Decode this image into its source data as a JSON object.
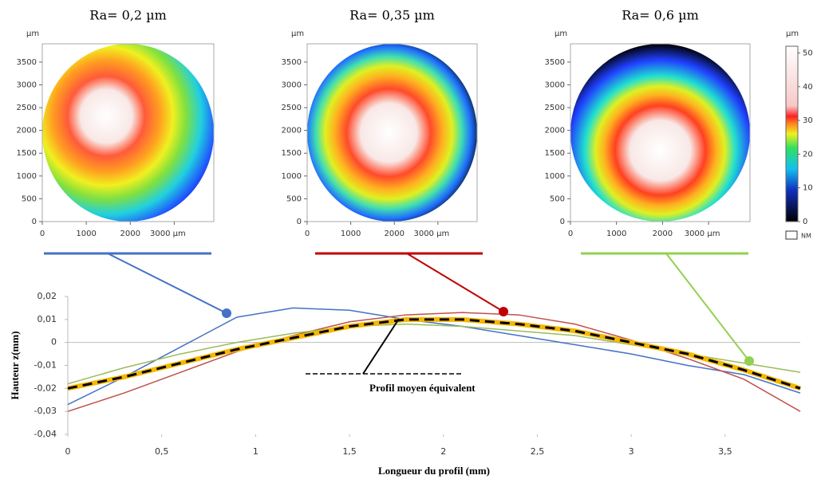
{
  "chart_data": [
    {
      "type": "surface-map",
      "title": "Ra= 0,2 µm",
      "unit": "µm",
      "xlim": [
        0,
        3900
      ],
      "ylim": [
        0,
        3900
      ],
      "xticks": [
        0,
        1000,
        2000,
        {
          "value": 3000,
          "label": "3000 µm"
        }
      ],
      "yticks": [
        0,
        500,
        1000,
        1500,
        2000,
        2500,
        3000,
        3500
      ]
    },
    {
      "type": "surface-map",
      "title": "Ra= 0,35 µm",
      "unit": "µm",
      "xlim": [
        0,
        3900
      ],
      "ylim": [
        0,
        3900
      ],
      "xticks": [
        0,
        1000,
        2000,
        {
          "value": 3000,
          "label": "3000 µm"
        }
      ],
      "yticks": [
        0,
        500,
        1000,
        1500,
        2000,
        2500,
        3000,
        3500
      ]
    },
    {
      "type": "surface-map",
      "title": "Ra= 0,6 µm",
      "unit": "µm",
      "xlim": [
        0,
        3900
      ],
      "ylim": [
        0,
        3900
      ],
      "xticks": [
        0,
        1000,
        2000,
        {
          "value": 3000,
          "label": "3000 µm"
        }
      ],
      "yticks": [
        0,
        500,
        1000,
        1500,
        2000,
        2500,
        3000,
        3500
      ]
    },
    {
      "type": "colorbar",
      "unit": "µm",
      "ylim": [
        0,
        52
      ],
      "yticks": [
        0,
        10,
        20,
        30,
        40,
        50
      ],
      "no_data_label": "NM"
    },
    {
      "type": "line",
      "xlabel": "Longueur du profil (mm)",
      "ylabel": "Hauteur z(mm)",
      "xlim": [
        0,
        3.9
      ],
      "ylim": [
        -0.04,
        0.02
      ],
      "xticks": [
        0,
        {
          "value": 0.5,
          "label": "0,5"
        },
        1,
        {
          "value": 1.5,
          "label": "1,5"
        },
        2,
        {
          "value": 2.5,
          "label": "2,5"
        },
        3,
        {
          "value": 3.5,
          "label": "3,5"
        }
      ],
      "yticks": [
        {
          "value": -0.04,
          "label": "-0,04"
        },
        {
          "value": -0.03,
          "label": "-0,03"
        },
        {
          "value": -0.02,
          "label": "-0,02"
        },
        {
          "value": -0.01,
          "label": "-0,01"
        },
        0,
        {
          "value": 0.01,
          "label": "0,01"
        },
        {
          "value": 0.02,
          "label": "0,02"
        }
      ],
      "x": [
        0,
        0.3,
        0.6,
        0.9,
        1.2,
        1.5,
        1.8,
        2.1,
        2.4,
        2.7,
        3.0,
        3.3,
        3.6,
        3.9
      ],
      "series": [
        {
          "color": "#4472c4",
          "values": [
            -0.027,
            -0.015,
            -0.002,
            0.011,
            0.015,
            0.014,
            0.01,
            0.007,
            0.003,
            -0.001,
            -0.005,
            -0.01,
            -0.014,
            -0.022
          ]
        },
        {
          "color": "#c0504d",
          "values": [
            -0.03,
            -0.022,
            -0.013,
            -0.004,
            0.003,
            0.009,
            0.012,
            0.013,
            0.012,
            0.008,
            0.001,
            -0.007,
            -0.016,
            -0.03
          ]
        },
        {
          "color": "#9bbb59",
          "values": [
            -0.018,
            -0.011,
            -0.005,
            0.0,
            0.004,
            0.007,
            0.008,
            0.007,
            0.005,
            0.003,
            -0.001,
            -0.005,
            -0.009,
            -0.013
          ]
        },
        {
          "name": "Profil moyen équivalent",
          "color": "#000000",
          "values": [
            -0.02,
            -0.015,
            -0.009,
            -0.003,
            0.002,
            0.007,
            0.01,
            0.01,
            0.008,
            0.005,
            0.0,
            -0.005,
            -0.012,
            -0.02
          ]
        }
      ]
    }
  ]
}
